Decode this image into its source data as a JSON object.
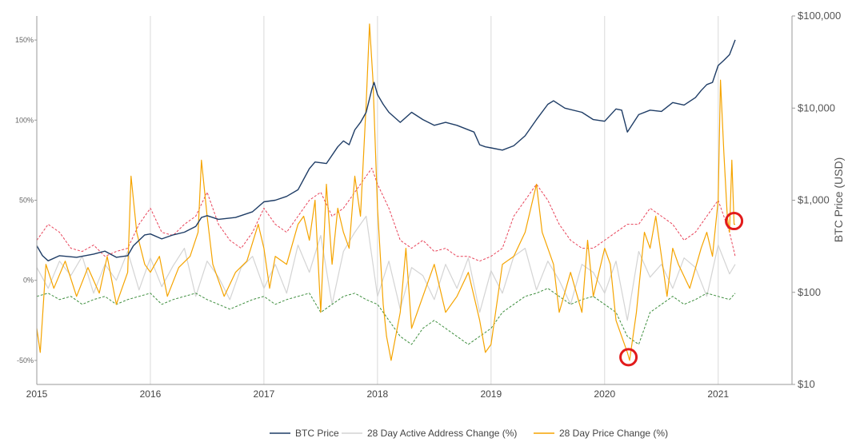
{
  "chart_data": {
    "type": "line",
    "x_ticks": [
      "2015",
      "2016",
      "2017",
      "2018",
      "2019",
      "2020",
      "2021"
    ],
    "x_range": [
      2015.0,
      2021.65
    ],
    "y_left": {
      "ticks": [
        -50,
        0,
        50,
        100,
        150
      ],
      "tick_labels": [
        "-50%",
        "0%",
        "50%",
        "100%",
        "150%"
      ],
      "range": [
        -65,
        165
      ],
      "scale": "linear"
    },
    "y_right": {
      "label": "BTC Price (USD)",
      "ticks": [
        10,
        100,
        1000,
        10000,
        100000
      ],
      "tick_labels": [
        "$10",
        "$100",
        "$1,000",
        "$10,000",
        "$100,000"
      ],
      "range": [
        10,
        100000
      ],
      "scale": "log"
    },
    "grid": "vertical at year ticks",
    "legend": {
      "placement": "bottom-center",
      "entries": [
        "BTC Price",
        "28 Day Active Address Change (%)",
        "28 Day Price Change (%)"
      ]
    },
    "colors": {
      "btc_price": "#1f3d66",
      "active_address": "#d4d4d4",
      "price_change": "#f5a400",
      "upper_band": "#e8445a",
      "lower_band": "#3f8f3f",
      "highlight": "#e21b1b"
    },
    "series": [
      {
        "name": "BTC Price",
        "axis": "right",
        "x": [
          2015.0,
          2015.05,
          2015.1,
          2015.2,
          2015.35,
          2015.5,
          2015.6,
          2015.7,
          2015.8,
          2015.85,
          2015.95,
          2016.0,
          2016.1,
          2016.2,
          2016.3,
          2016.4,
          2016.45,
          2016.5,
          2016.6,
          2016.75,
          2016.9,
          2017.0,
          2017.1,
          2017.2,
          2017.3,
          2017.4,
          2017.45,
          2017.55,
          2017.65,
          2017.7,
          2017.75,
          2017.8,
          2017.85,
          2017.9,
          2017.95,
          2017.97,
          2018.0,
          2018.05,
          2018.1,
          2018.2,
          2018.3,
          2018.4,
          2018.5,
          2018.6,
          2018.7,
          2018.85,
          2018.9,
          2018.95,
          2019.0,
          2019.1,
          2019.2,
          2019.3,
          2019.4,
          2019.5,
          2019.55,
          2019.65,
          2019.8,
          2019.9,
          2020.0,
          2020.1,
          2020.15,
          2020.2,
          2020.3,
          2020.4,
          2020.5,
          2020.6,
          2020.7,
          2020.8,
          2020.85,
          2020.9,
          2020.95,
          2021.0,
          2021.05,
          2021.1,
          2021.15
        ],
        "y": [
          320,
          250,
          220,
          250,
          240,
          260,
          280,
          240,
          250,
          320,
          420,
          430,
          380,
          420,
          450,
          520,
          650,
          680,
          620,
          650,
          750,
          960,
          1000,
          1100,
          1300,
          2200,
          2600,
          2500,
          3800,
          4400,
          4000,
          5800,
          7000,
          9000,
          16000,
          19000,
          14000,
          11000,
          9000,
          7000,
          9000,
          7500,
          6500,
          7000,
          6500,
          5500,
          4000,
          3800,
          3700,
          3500,
          3900,
          5000,
          7500,
          11000,
          12000,
          10000,
          9000,
          7500,
          7200,
          9800,
          9500,
          5500,
          8500,
          9500,
          9200,
          11500,
          10800,
          13000,
          15500,
          18000,
          19000,
          29000,
          33000,
          38000,
          55000
        ]
      },
      {
        "name": "28 Day Active Address Change (%)",
        "axis": "left",
        "x": [
          2015.0,
          2015.1,
          2015.2,
          2015.3,
          2015.4,
          2015.5,
          2015.6,
          2015.7,
          2015.8,
          2015.9,
          2016.0,
          2016.1,
          2016.2,
          2016.3,
          2016.4,
          2016.5,
          2016.6,
          2016.7,
          2016.8,
          2016.9,
          2017.0,
          2017.1,
          2017.2,
          2017.3,
          2017.4,
          2017.5,
          2017.6,
          2017.7,
          2017.8,
          2017.9,
          2018.0,
          2018.1,
          2018.2,
          2018.3,
          2018.4,
          2018.5,
          2018.6,
          2018.7,
          2018.8,
          2018.9,
          2019.0,
          2019.1,
          2019.2,
          2019.3,
          2019.4,
          2019.5,
          2019.6,
          2019.7,
          2019.8,
          2019.9,
          2020.0,
          2020.1,
          2020.2,
          2020.3,
          2020.4,
          2020.5,
          2020.6,
          2020.7,
          2020.8,
          2020.9,
          2021.0,
          2021.1,
          2021.15
        ],
        "y": [
          8,
          -5,
          12,
          3,
          15,
          -8,
          10,
          0,
          18,
          -6,
          14,
          -4,
          9,
          20,
          -10,
          12,
          2,
          -12,
          8,
          15,
          -5,
          10,
          -8,
          22,
          5,
          28,
          -15,
          18,
          30,
          40,
          -10,
          12,
          -18,
          8,
          3,
          -12,
          10,
          -5,
          14,
          -20,
          6,
          -8,
          15,
          20,
          -6,
          12,
          0,
          -15,
          10,
          5,
          -8,
          12,
          -25,
          18,
          2,
          10,
          -5,
          14,
          8,
          -10,
          22,
          4,
          10
        ]
      },
      {
        "name": "28 Day Price Change (%)",
        "axis": "left",
        "x": [
          2015.0,
          2015.03,
          2015.08,
          2015.15,
          2015.25,
          2015.35,
          2015.45,
          2015.55,
          2015.62,
          2015.7,
          2015.8,
          2015.83,
          2015.88,
          2015.95,
          2016.0,
          2016.08,
          2016.15,
          2016.25,
          2016.35,
          2016.42,
          2016.45,
          2016.5,
          2016.55,
          2016.65,
          2016.75,
          2016.85,
          2016.95,
          2017.0,
          2017.05,
          2017.1,
          2017.2,
          2017.3,
          2017.35,
          2017.4,
          2017.45,
          2017.5,
          2017.55,
          2017.6,
          2017.65,
          2017.7,
          2017.75,
          2017.8,
          2017.85,
          2017.9,
          2017.93,
          2017.96,
          2018.0,
          2018.05,
          2018.08,
          2018.12,
          2018.2,
          2018.25,
          2018.3,
          2018.4,
          2018.5,
          2018.6,
          2018.7,
          2018.8,
          2018.9,
          2018.95,
          2019.0,
          2019.1,
          2019.2,
          2019.3,
          2019.35,
          2019.4,
          2019.45,
          2019.5,
          2019.55,
          2019.6,
          2019.7,
          2019.8,
          2019.85,
          2019.9,
          2020.0,
          2020.05,
          2020.1,
          2020.15,
          2020.2,
          2020.22,
          2020.28,
          2020.35,
          2020.4,
          2020.45,
          2020.5,
          2020.55,
          2020.6,
          2020.65,
          2020.75,
          2020.85,
          2020.9,
          2020.95,
          2021.0,
          2021.02,
          2021.05,
          2021.08,
          2021.1,
          2021.12,
          2021.14,
          2021.15
        ],
        "y": [
          -30,
          -45,
          10,
          -5,
          12,
          -10,
          8,
          -8,
          15,
          -15,
          5,
          65,
          30,
          10,
          5,
          15,
          -10,
          8,
          15,
          30,
          75,
          40,
          10,
          -10,
          5,
          12,
          35,
          20,
          -5,
          15,
          10,
          35,
          40,
          25,
          50,
          -20,
          60,
          10,
          45,
          30,
          20,
          65,
          40,
          110,
          160,
          125,
          45,
          -15,
          -35,
          -50,
          -20,
          20,
          -30,
          -10,
          10,
          -20,
          -10,
          5,
          -25,
          -45,
          -40,
          10,
          15,
          30,
          45,
          60,
          30,
          20,
          10,
          -20,
          5,
          -20,
          25,
          -10,
          20,
          10,
          -25,
          -35,
          -45,
          -50,
          -20,
          30,
          20,
          40,
          15,
          -10,
          20,
          10,
          -5,
          20,
          30,
          15,
          50,
          125,
          80,
          40,
          30,
          75,
          35,
          35
        ]
      },
      {
        "name": "",
        "axis": "left",
        "style": "dashed-upper",
        "x": [
          2015.0,
          2015.1,
          2015.2,
          2015.3,
          2015.4,
          2015.5,
          2015.6,
          2015.7,
          2015.8,
          2015.9,
          2016.0,
          2016.1,
          2016.2,
          2016.3,
          2016.4,
          2016.5,
          2016.6,
          2016.7,
          2016.8,
          2016.9,
          2017.0,
          2017.1,
          2017.2,
          2017.3,
          2017.4,
          2017.5,
          2017.6,
          2017.7,
          2017.8,
          2017.9,
          2017.95,
          2018.0,
          2018.1,
          2018.2,
          2018.3,
          2018.4,
          2018.5,
          2018.6,
          2018.7,
          2018.8,
          2018.9,
          2019.0,
          2019.1,
          2019.2,
          2019.3,
          2019.4,
          2019.5,
          2019.6,
          2019.7,
          2019.8,
          2019.9,
          2020.0,
          2020.1,
          2020.2,
          2020.3,
          2020.4,
          2020.5,
          2020.6,
          2020.7,
          2020.8,
          2020.9,
          2021.0,
          2021.1,
          2021.15
        ],
        "y": [
          25,
          35,
          30,
          20,
          18,
          22,
          15,
          18,
          20,
          35,
          45,
          30,
          28,
          35,
          40,
          55,
          35,
          25,
          20,
          30,
          45,
          35,
          30,
          40,
          50,
          55,
          40,
          45,
          55,
          65,
          70,
          60,
          45,
          25,
          20,
          25,
          18,
          20,
          15,
          15,
          12,
          15,
          20,
          40,
          50,
          60,
          50,
          35,
          25,
          20,
          20,
          25,
          30,
          35,
          35,
          45,
          40,
          35,
          25,
          30,
          40,
          50,
          30,
          15
        ]
      },
      {
        "name": "",
        "axis": "left",
        "style": "dashed-lower",
        "x": [
          2015.0,
          2015.1,
          2015.2,
          2015.3,
          2015.4,
          2015.5,
          2015.6,
          2015.7,
          2015.8,
          2015.9,
          2016.0,
          2016.1,
          2016.2,
          2016.3,
          2016.4,
          2016.5,
          2016.6,
          2016.7,
          2016.8,
          2016.9,
          2017.0,
          2017.1,
          2017.2,
          2017.3,
          2017.4,
          2017.5,
          2017.6,
          2017.7,
          2017.8,
          2017.9,
          2018.0,
          2018.1,
          2018.2,
          2018.3,
          2018.4,
          2018.5,
          2018.6,
          2018.7,
          2018.8,
          2018.9,
          2019.0,
          2019.1,
          2019.2,
          2019.3,
          2019.4,
          2019.5,
          2019.6,
          2019.7,
          2019.8,
          2019.9,
          2020.0,
          2020.1,
          2020.2,
          2020.3,
          2020.4,
          2020.5,
          2020.6,
          2020.7,
          2020.8,
          2020.9,
          2021.0,
          2021.1,
          2021.15
        ],
        "y": [
          -10,
          -8,
          -12,
          -10,
          -15,
          -12,
          -10,
          -15,
          -12,
          -10,
          -8,
          -15,
          -12,
          -10,
          -8,
          -12,
          -15,
          -18,
          -15,
          -12,
          -10,
          -15,
          -12,
          -10,
          -8,
          -20,
          -15,
          -10,
          -8,
          -12,
          -15,
          -25,
          -35,
          -40,
          -30,
          -25,
          -30,
          -35,
          -40,
          -35,
          -30,
          -20,
          -15,
          -10,
          -8,
          -5,
          -10,
          -15,
          -12,
          -10,
          -15,
          -20,
          -35,
          -40,
          -20,
          -15,
          -10,
          -15,
          -12,
          -8,
          -10,
          -12,
          -8
        ]
      }
    ],
    "annotations": [
      {
        "kind": "highlight-circle",
        "x": 2020.21,
        "y": -48,
        "axis": "left"
      },
      {
        "kind": "highlight-circle",
        "x": 2021.14,
        "y": 37,
        "axis": "left"
      }
    ]
  }
}
